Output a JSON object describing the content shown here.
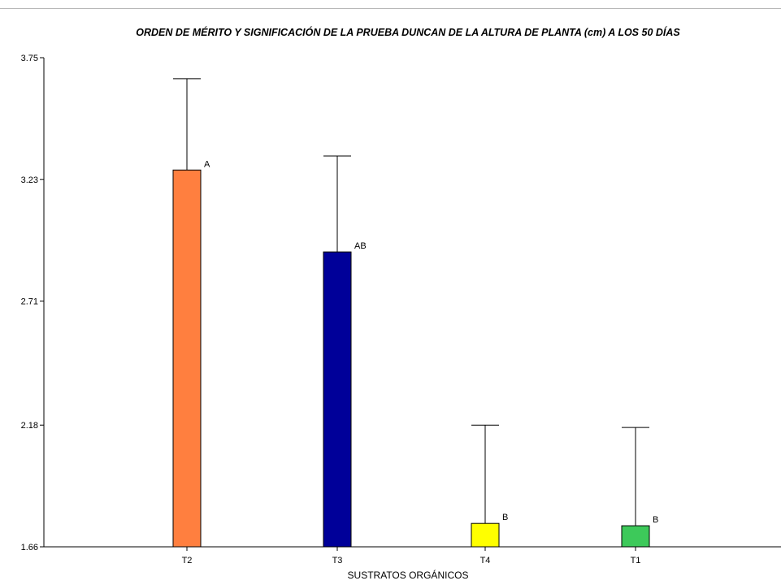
{
  "chart_data": {
    "type": "bar",
    "title": "ORDEN DE MÉRITO Y SIGNIFICACIÓN DE LA PRUEBA DUNCAN DE LA ALTURA DE PLANTA (cm)  A LOS 50 DÍAS",
    "xlabel": "SUSTRATOS ORGÁNICOS",
    "ylabel": "",
    "ylim": [
      1.66,
      3.75
    ],
    "yticks": [
      1.66,
      2.18,
      2.71,
      3.23,
      3.75
    ],
    "ytick_labels": [
      "1.66",
      "2.18",
      "2.71",
      "3.23",
      "3.75"
    ],
    "categories": [
      "T2",
      "T3",
      "T4",
      "T1"
    ],
    "values": [
      3.27,
      2.92,
      1.76,
      1.75
    ],
    "error_upper": [
      3.66,
      3.33,
      2.18,
      2.17
    ],
    "significance_labels": [
      "A",
      "AB",
      "B",
      "B"
    ],
    "colors": [
      "#ff7f3f",
      "#000099",
      "#ffff00",
      "#3dc95a"
    ],
    "grid": false,
    "legend": "none"
  }
}
